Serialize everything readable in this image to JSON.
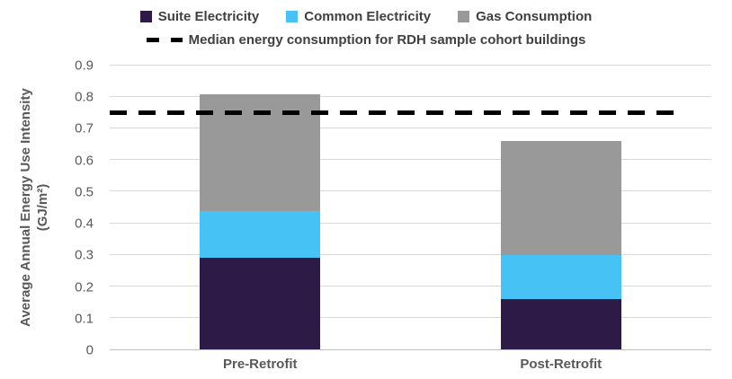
{
  "chart_data": {
    "type": "bar",
    "stacked": true,
    "title": "",
    "categories": [
      "Pre-Retrofit",
      "Post-Retrofit"
    ],
    "series": [
      {
        "name": "Suite Electricity",
        "color": "#2E1A47",
        "values": [
          0.29,
          0.16
        ]
      },
      {
        "name": "Common Electricity",
        "color": "#47C2F5",
        "values": [
          0.15,
          0.14
        ]
      },
      {
        "name": "Gas Consumption",
        "color": "#999999",
        "values": [
          0.37,
          0.36
        ]
      }
    ],
    "stack_totals": [
      0.81,
      0.66
    ],
    "median_line": {
      "label": "Median energy consumption for RDH sample cohort buildings",
      "value": 0.75,
      "color": "#000000",
      "style": "dashed"
    },
    "xlabel": "",
    "ylabel_line1": "Average Annual Energy Use Intensity",
    "ylabel_line2": "(GJ/m²)",
    "ylim": [
      0,
      0.9
    ],
    "yticks": [
      "0",
      "0.1",
      "0.2",
      "0.3",
      "0.4",
      "0.5",
      "0.6",
      "0.7",
      "0.8",
      "0.9"
    ],
    "grid": true,
    "legend_position": "top",
    "bar_width_fraction": 0.2,
    "colors": {
      "background": "#FFFFFF",
      "gridline": "#D9D9D9",
      "axis_line": "#BFBFBF",
      "axis_text": "#595959",
      "legend_text": "#404040"
    }
  }
}
